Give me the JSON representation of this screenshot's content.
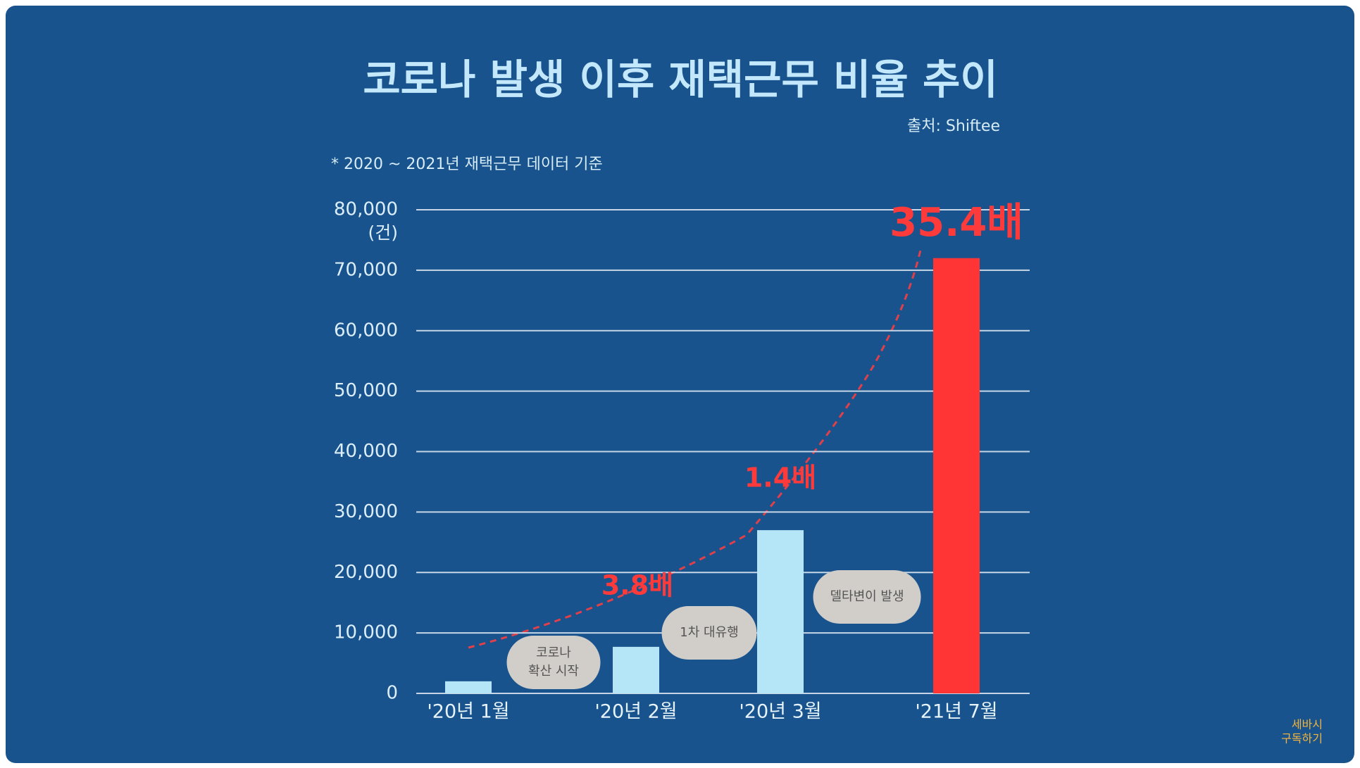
{
  "chart_data": {
    "type": "bar",
    "title": "코로나 발생 이후 재택근무 비율 추이",
    "source": "출처: Shiftee",
    "note": "* 2020 ~ 2021년 재택근무 데이터 기준",
    "y_unit": "(건)",
    "categories": [
      "'20년 1월",
      "'20년 2월",
      "'20년 3월",
      "'21년 7월"
    ],
    "values": [
      2000,
      7700,
      27000,
      72000
    ],
    "colors": [
      "#b5e6f8",
      "#b5e6f8",
      "#b5e6f8",
      "#ff3535"
    ],
    "ylim": [
      0,
      80000
    ],
    "yticks": [
      0,
      {
        "value": 10000,
        "label": "10,000"
      },
      {
        "value": 20000,
        "label": "20,000"
      },
      {
        "value": 30000,
        "label": "30,000"
      },
      {
        "value": 40000,
        "label": "40,000"
      },
      {
        "value": 50000,
        "label": "50,000"
      },
      {
        "value": 60000,
        "label": "60,000"
      },
      {
        "value": 70000,
        "label": "70,000"
      },
      {
        "value": 80000,
        "label": "80,000"
      }
    ],
    "grid": true,
    "growth_labels": [
      "3.8배",
      "1.4배",
      "35.4배"
    ],
    "events": [
      [
        "코로나",
        "확산 시작"
      ],
      [
        "1차 대유행"
      ],
      [
        "델타변이 발생"
      ]
    ]
  },
  "corner": [
    "세바시",
    "구독하기"
  ]
}
